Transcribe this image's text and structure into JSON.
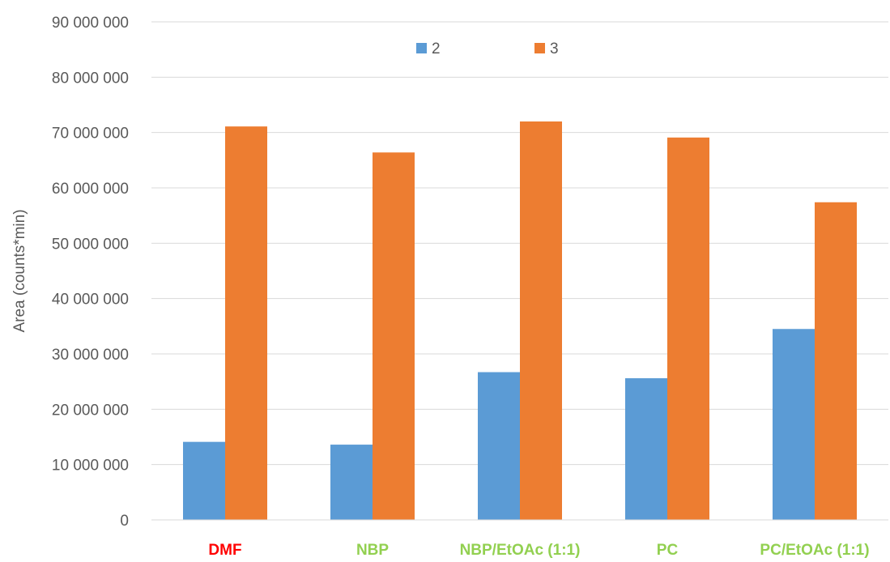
{
  "chart_data": {
    "type": "bar",
    "title": "",
    "xlabel": "",
    "ylabel": "Area (counts*min)",
    "ylim": [
      0,
      90000000
    ],
    "yticks": [
      0,
      10000000,
      20000000,
      30000000,
      40000000,
      50000000,
      60000000,
      70000000,
      80000000,
      90000000
    ],
    "ytick_labels": [
      "0",
      "10 000 000",
      "20 000 000",
      "30 000 000",
      "40 000 000",
      "50 000 000",
      "60 000 000",
      "70 000 000",
      "80 000 000",
      "90 000 000"
    ],
    "grid": true,
    "legend_position": "top-center",
    "categories": [
      "DMF",
      "NBP",
      "NBP/EtOAc (1:1)",
      "PC",
      "PC/EtOAc (1:1)"
    ],
    "category_colors": [
      "#ff0000",
      "#92d050",
      "#92d050",
      "#92d050",
      "#92d050"
    ],
    "series": [
      {
        "name": "2",
        "color": "#5b9bd5",
        "values": [
          14100000,
          13600000,
          26700000,
          25600000,
          34500000
        ]
      },
      {
        "name": "3",
        "color": "#ed7d31",
        "values": [
          71100000,
          66400000,
          72000000,
          69100000,
          57400000
        ]
      }
    ]
  }
}
